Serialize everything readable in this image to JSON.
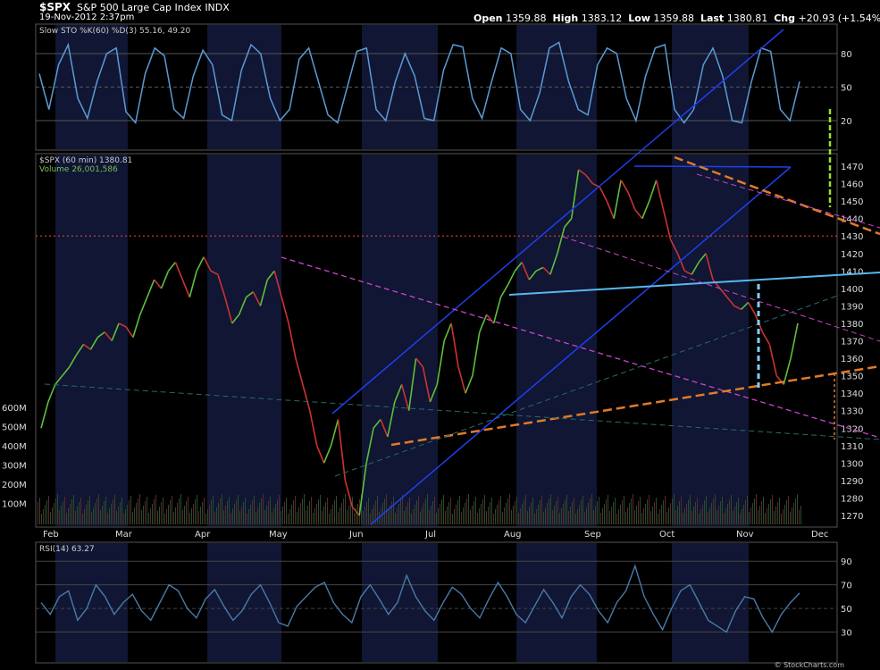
{
  "header": {
    "symbol": "$SPX",
    "name": "S&P 500 Large Cap Index",
    "exchange": "INDX",
    "datetime": "19-Nov-2012 2:37pm",
    "open_label": "Open",
    "open": "1359.88",
    "high_label": "High",
    "high": "1383.12",
    "low_label": "Low",
    "low": "1359.88",
    "last_label": "Last",
    "last": "1380.81",
    "chg_label": "Chg",
    "chg": "+20.93 (+1.54%)"
  },
  "credit": "© StockCharts.com",
  "colors": {
    "background": "#000000",
    "band_shade": "#101633",
    "stochastic": "#5b9bd5",
    "price_up": "#5fbf3a",
    "price_down": "#cc3333",
    "channel": "#1f3ff0",
    "neckline": "#58b7ee",
    "support": "#e07b2a",
    "resistance_dashed": "#cc44cc",
    "level_dotted": "#e0403a"
  },
  "chart_data": [
    {
      "type": "line",
      "panel": "stochastic",
      "label": "Slow STO %K(60) %D(3)",
      "values_label": "55.16, 49.20",
      "ylim": [
        0,
        100
      ],
      "y_ticks": [
        "80",
        "50",
        "20"
      ],
      "series": [
        {
          "values": [
            62,
            30,
            70,
            88,
            40,
            22,
            55,
            80,
            85,
            28,
            18,
            62,
            85,
            78,
            30,
            22,
            60,
            83,
            70,
            25,
            20,
            65,
            88,
            80,
            40,
            20,
            30,
            75,
            85,
            55,
            25,
            18,
            50,
            82,
            85,
            30,
            20,
            55,
            80,
            60,
            22,
            20,
            65,
            88,
            86,
            40,
            22,
            55,
            85,
            80,
            30,
            20,
            45,
            85,
            90,
            55,
            30,
            25,
            70,
            85,
            80,
            40,
            20,
            60,
            85,
            88,
            30,
            18,
            30,
            70,
            85,
            60,
            20,
            18,
            55,
            85,
            82,
            30,
            20,
            55
          ]
        }
      ]
    },
    {
      "type": "line",
      "panel": "price",
      "label": "$SPX (60 min)",
      "last": "1380.81",
      "volume_label": "Volume",
      "volume": "26,001,586",
      "x_tick_labels": [
        "Feb",
        "Mar",
        "Apr",
        "May",
        "Jun",
        "Jul",
        "Aug",
        "Sep",
        "Oct",
        "Nov",
        "Dec"
      ],
      "y_tick_labels": [
        "1470",
        "1460",
        "1450",
        "1440",
        "1430",
        "1420",
        "1410",
        "1400",
        "1390",
        "1380",
        "1370",
        "1360",
        "1350",
        "1340",
        "1330",
        "1320",
        "1310",
        "1300",
        "1290",
        "1280",
        "1270"
      ],
      "volume_tick_labels": [
        "600M",
        "500M",
        "400M",
        "300M",
        "200M",
        "100M"
      ],
      "ylim": [
        1262,
        1478
      ],
      "horizontal_level": 1430,
      "series": [
        {
          "name": "close",
          "values": [
            1320,
            1335,
            1345,
            1350,
            1355,
            1362,
            1368,
            1365,
            1372,
            1375,
            1370,
            1380,
            1378,
            1372,
            1385,
            1395,
            1405,
            1400,
            1410,
            1415,
            1405,
            1395,
            1410,
            1418,
            1410,
            1408,
            1395,
            1380,
            1385,
            1395,
            1398,
            1390,
            1405,
            1410,
            1395,
            1380,
            1360,
            1345,
            1330,
            1310,
            1300,
            1310,
            1325,
            1290,
            1275,
            1270,
            1300,
            1320,
            1325,
            1315,
            1335,
            1345,
            1330,
            1360,
            1355,
            1335,
            1345,
            1370,
            1380,
            1355,
            1340,
            1350,
            1375,
            1385,
            1380,
            1395,
            1402,
            1410,
            1415,
            1405,
            1410,
            1412,
            1408,
            1420,
            1435,
            1440,
            1468,
            1465,
            1460,
            1458,
            1450,
            1440,
            1462,
            1455,
            1445,
            1440,
            1450,
            1462,
            1445,
            1428,
            1420,
            1410,
            1408,
            1415,
            1420,
            1405,
            1400,
            1395,
            1390,
            1388,
            1392,
            1385,
            1375,
            1368,
            1350,
            1345,
            1360,
            1380
          ]
        }
      ]
    },
    {
      "type": "line",
      "panel": "rsi",
      "label": "RSI(14)",
      "value": "63.27",
      "ylim": [
        10,
        100
      ],
      "y_ticks": [
        "90",
        "70",
        "50",
        "30"
      ],
      "series": [
        {
          "values": [
            55,
            45,
            60,
            65,
            40,
            50,
            70,
            60,
            45,
            55,
            62,
            48,
            40,
            55,
            70,
            65,
            50,
            42,
            58,
            66,
            52,
            40,
            48,
            62,
            70,
            55,
            38,
            35,
            52,
            60,
            68,
            72,
            55,
            45,
            38,
            60,
            70,
            58,
            45,
            55,
            78,
            60,
            48,
            40,
            55,
            68,
            62,
            50,
            42,
            58,
            72,
            60,
            45,
            38,
            52,
            66,
            55,
            42,
            60,
            70,
            62,
            48,
            38,
            55,
            65,
            86,
            60,
            45,
            32,
            50,
            65,
            70,
            55,
            40,
            35,
            30,
            48,
            60,
            58,
            42,
            30,
            45,
            55,
            63
          ]
        }
      ]
    }
  ]
}
